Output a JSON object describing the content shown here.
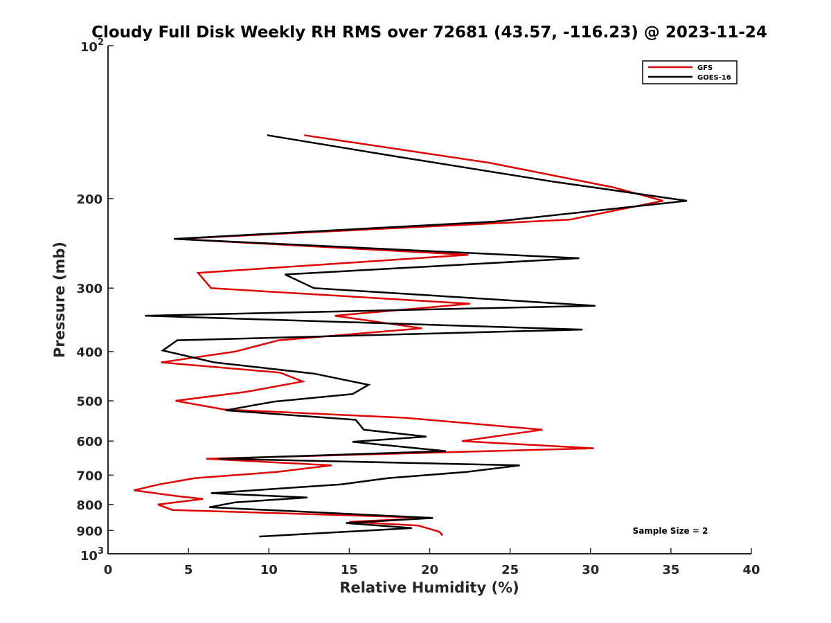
{
  "chart_data": {
    "type": "line",
    "title": "Cloudy Full Disk Weekly RH RMS over 72681 (43.57, -116.23) @ 2023-11-24",
    "xlabel": "Relative Humidity (%)",
    "ylabel": "Pressure (mb)",
    "xlim": [
      0,
      40
    ],
    "ylim": [
      100,
      1000
    ],
    "y_scale": "log",
    "y_reversed": true,
    "grid": false,
    "legend_position": "top-right",
    "x_ticks": [
      0,
      5,
      10,
      15,
      20,
      25,
      30,
      35,
      40
    ],
    "x_tick_labels": [
      "0",
      "5",
      "10",
      "15",
      "20",
      "25",
      "30",
      "35",
      "40"
    ],
    "y_ticks": [
      200,
      300,
      400,
      500,
      600,
      700,
      800,
      900
    ],
    "y_tick_labels": [
      "200",
      "300",
      "400",
      "500",
      "600",
      "700",
      "800",
      "900"
    ],
    "y_limit_labels": {
      "top": {
        "base": "10",
        "exp": "2"
      },
      "bottom": {
        "base": "10",
        "exp": "3"
      }
    },
    "annotation": "Sample Size = 2",
    "series": [
      {
        "name": "GFS",
        "color": "#e00000",
        "points": [
          [
            12.2,
            150
          ],
          [
            23.7,
            170
          ],
          [
            31.4,
            190
          ],
          [
            34.5,
            202
          ],
          [
            28.7,
            220
          ],
          [
            4.2,
            240
          ],
          [
            22.4,
            258
          ],
          [
            5.6,
            280
          ],
          [
            6.4,
            300
          ],
          [
            22.5,
            322
          ],
          [
            14.1,
            340
          ],
          [
            19.5,
            360
          ],
          [
            10.6,
            380
          ],
          [
            7.9,
            400
          ],
          [
            3.3,
            420
          ],
          [
            10.7,
            440
          ],
          [
            12.1,
            458
          ],
          [
            8.6,
            480
          ],
          [
            4.2,
            500
          ],
          [
            7.2,
            520
          ],
          [
            18.5,
            540
          ],
          [
            27.0,
            570
          ],
          [
            22.0,
            600
          ],
          [
            30.2,
            620
          ],
          [
            6.1,
            650
          ],
          [
            13.9,
            670
          ],
          [
            10.5,
            690
          ],
          [
            5.4,
            710
          ],
          [
            3.2,
            730
          ],
          [
            1.6,
            750
          ],
          [
            4.3,
            770
          ],
          [
            5.9,
            780
          ],
          [
            3.1,
            800
          ],
          [
            4.0,
            820
          ],
          [
            20.2,
            850
          ],
          [
            15.0,
            865
          ],
          [
            19.3,
            880
          ],
          [
            20.6,
            905
          ],
          [
            20.8,
            920
          ]
        ]
      },
      {
        "name": "GOES-16",
        "color": "#000000",
        "points": [
          [
            9.9,
            150
          ],
          [
            17.8,
            165
          ],
          [
            27.6,
            185
          ],
          [
            36.0,
            202
          ],
          [
            24.0,
            222
          ],
          [
            4.1,
            240
          ],
          [
            29.3,
            262
          ],
          [
            11.0,
            282
          ],
          [
            12.8,
            300
          ],
          [
            30.3,
            325
          ],
          [
            2.3,
            340
          ],
          [
            29.5,
            362
          ],
          [
            4.3,
            380
          ],
          [
            3.4,
            398
          ],
          [
            6.6,
            420
          ],
          [
            12.8,
            442
          ],
          [
            16.2,
            465
          ],
          [
            15.2,
            485
          ],
          [
            10.3,
            502
          ],
          [
            7.3,
            522
          ],
          [
            15.4,
            545
          ],
          [
            15.9,
            570
          ],
          [
            19.8,
            588
          ],
          [
            15.2,
            602
          ],
          [
            18.8,
            618
          ],
          [
            21.0,
            628
          ],
          [
            6.9,
            650
          ],
          [
            25.6,
            670
          ],
          [
            22.3,
            690
          ],
          [
            17.4,
            710
          ],
          [
            14.5,
            730
          ],
          [
            6.4,
            760
          ],
          [
            12.4,
            775
          ],
          [
            7.9,
            792
          ],
          [
            6.3,
            810
          ],
          [
            20.2,
            850
          ],
          [
            14.8,
            870
          ],
          [
            18.9,
            890
          ],
          [
            9.4,
            925
          ]
        ]
      }
    ]
  }
}
